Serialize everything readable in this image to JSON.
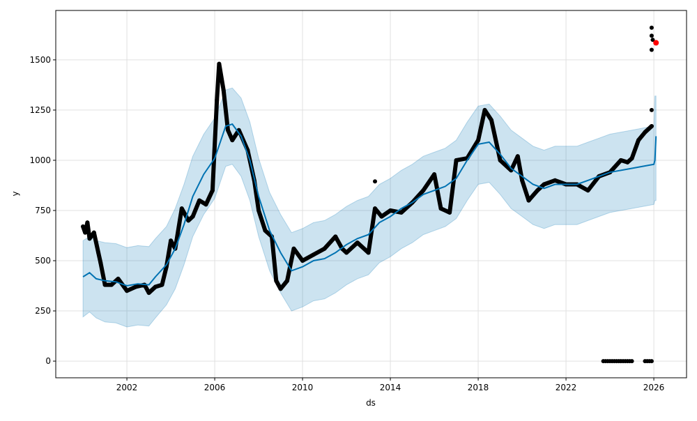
{
  "chart_data": {
    "type": "line",
    "title": "",
    "xlabel": "ds",
    "ylabel": "y",
    "xlim": [
      1998.76,
      2027.49
    ],
    "ylim": [
      -83,
      1746
    ],
    "grid": true,
    "x_ticks": [
      2002,
      2006,
      2010,
      2014,
      2018,
      2022,
      2026
    ],
    "x_tick_labels": [
      "2002",
      "2006",
      "2010",
      "2014",
      "2018",
      "2022",
      "2026"
    ],
    "y_ticks": [
      0,
      250,
      500,
      750,
      1000,
      1250,
      1500
    ],
    "y_tick_labels": [
      "0",
      "250",
      "500",
      "750",
      "1000",
      "1250",
      "1500"
    ],
    "colors": {
      "forecast": "#0072b2",
      "band": "#a9cce3",
      "band_edge": "#9ec5e0",
      "actual": "#000000",
      "highlight": "#ff0000",
      "grid": "#e0e0e0"
    },
    "forecast": {
      "x": [
        2000.0,
        2000.3,
        2000.6,
        2001,
        2001.5,
        2002,
        2002.5,
        2003,
        2003.3,
        2003.8,
        2004.2,
        2004.6,
        2005,
        2005.5,
        2006,
        2006.5,
        2006.8,
        2007.2,
        2007.6,
        2008,
        2008.5,
        2009,
        2009.5,
        2010,
        2010.5,
        2011,
        2011.5,
        2012,
        2012.5,
        2013,
        2013.5,
        2014,
        2014.5,
        2015,
        2015.5,
        2016,
        2016.5,
        2017,
        2017.5,
        2018,
        2018.5,
        2019,
        2019.5,
        2020,
        2020.5,
        2021,
        2021.5,
        2022,
        2022.5,
        2023,
        2023.5,
        2024,
        2024.5,
        2025,
        2025.5,
        2026,
        2026.05,
        2026.1
      ],
      "yhat": [
        420,
        440,
        410,
        400,
        395,
        375,
        385,
        380,
        420,
        480,
        560,
        680,
        820,
        930,
        1010,
        1170,
        1180,
        1120,
        1000,
        820,
        650,
        540,
        450,
        470,
        500,
        510,
        540,
        580,
        610,
        630,
        690,
        720,
        760,
        790,
        830,
        850,
        870,
        910,
        1000,
        1080,
        1090,
        1030,
        960,
        920,
        880,
        860,
        880,
        880,
        880,
        900,
        920,
        940,
        950,
        960,
        970,
        980,
        1000,
        1120
      ],
      "lower": [
        220,
        245,
        215,
        195,
        190,
        170,
        180,
        175,
        215,
        280,
        360,
        480,
        620,
        730,
        810,
        970,
        980,
        920,
        800,
        620,
        450,
        340,
        250,
        270,
        300,
        310,
        340,
        380,
        410,
        430,
        490,
        520,
        560,
        590,
        630,
        650,
        670,
        710,
        800,
        880,
        890,
        830,
        760,
        720,
        680,
        660,
        680,
        680,
        680,
        700,
        720,
        740,
        750,
        760,
        770,
        780,
        800,
        800
      ],
      "upper": [
        600,
        620,
        600,
        590,
        585,
        565,
        575,
        570,
        610,
        670,
        760,
        880,
        1020,
        1130,
        1210,
        1350,
        1360,
        1310,
        1190,
        1010,
        840,
        730,
        640,
        660,
        690,
        700,
        730,
        770,
        800,
        820,
        880,
        910,
        950,
        980,
        1020,
        1040,
        1060,
        1100,
        1190,
        1270,
        1280,
        1220,
        1150,
        1110,
        1070,
        1050,
        1070,
        1070,
        1070,
        1090,
        1110,
        1130,
        1140,
        1150,
        1160,
        1170,
        1320,
        1320
      ]
    },
    "actual": {
      "x": [
        2000.0,
        2000.1,
        2000.2,
        2000.3,
        2000.5,
        2000.7,
        2000.8,
        2001,
        2001.3,
        2001.6,
        2002,
        2002.4,
        2002.8,
        2003,
        2003.3,
        2003.6,
        2003.8,
        2004,
        2004.2,
        2004.5,
        2004.8,
        2005,
        2005.3,
        2005.6,
        2005.9,
        2006.1,
        2006.2,
        2006.4,
        2006.6,
        2006.8,
        2007.1,
        2007.5,
        2007.8,
        2008,
        2008.3,
        2008.6,
        2008.8,
        2009,
        2009.3,
        2009.6,
        2010,
        2010.5,
        2011,
        2011.5,
        2011.8,
        2012,
        2012.5,
        2013,
        2013.3,
        2013.6,
        2014,
        2014.5,
        2015,
        2015.5,
        2016,
        2016.3,
        2016.7,
        2017,
        2017.5,
        2018,
        2018.3,
        2018.6,
        2019,
        2019.5,
        2019.8,
        2020,
        2020.3,
        2020.7,
        2021,
        2021.5,
        2022,
        2022.5,
        2023,
        2023.5,
        2024,
        2024.5,
        2024.8,
        2025,
        2025.3,
        2025.6,
        2025.9
      ],
      "y": [
        670,
        640,
        690,
        610,
        640,
        540,
        490,
        380,
        380,
        410,
        350,
        370,
        380,
        340,
        370,
        380,
        470,
        600,
        560,
        760,
        700,
        720,
        800,
        780,
        850,
        1300,
        1480,
        1350,
        1150,
        1100,
        1150,
        1050,
        900,
        750,
        650,
        620,
        400,
        360,
        400,
        560,
        500,
        530,
        560,
        620,
        560,
        540,
        590,
        540,
        760,
        720,
        750,
        740,
        790,
        850,
        930,
        760,
        740,
        1000,
        1010,
        1100,
        1250,
        1200,
        1000,
        950,
        1020,
        900,
        800,
        850,
        880,
        900,
        880,
        880,
        850,
        920,
        940,
        1000,
        990,
        1010,
        1100,
        1140,
        1170
      ],
      "outliers_x": [
        2013.3,
        2025.9,
        2025.9,
        2025.9,
        2025.95,
        2025.9,
        2023.7,
        2023.8,
        2023.9,
        2024.0,
        2024.1,
        2024.2,
        2024.3,
        2024.4,
        2024.5,
        2024.6,
        2024.7,
        2024.8,
        2024.9,
        2025.0,
        2025.6,
        2025.7,
        2025.8,
        2025.9
      ],
      "outliers_y": [
        895,
        1250,
        1660,
        1620,
        1600,
        1550,
        0,
        0,
        0,
        0,
        0,
        0,
        0,
        0,
        0,
        0,
        0,
        0,
        0,
        0,
        0,
        0,
        0,
        0
      ]
    },
    "highlight_point": {
      "x": 2026.1,
      "y": 1585
    }
  }
}
